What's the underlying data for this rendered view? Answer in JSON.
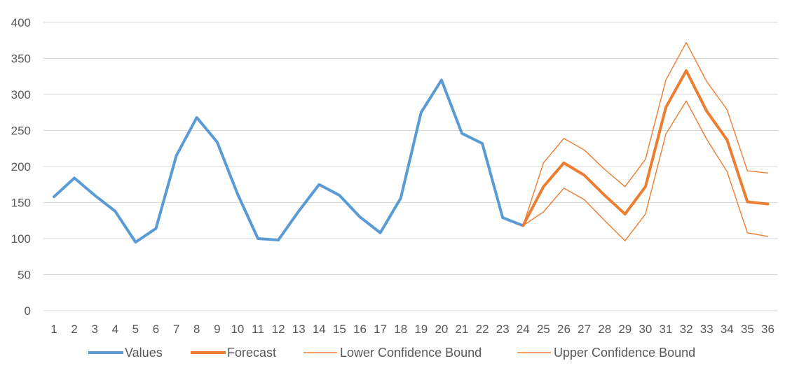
{
  "chart_data": {
    "type": "line",
    "title": "",
    "xlabel": "",
    "ylabel": "",
    "ylim": [
      0,
      400
    ],
    "y_ticks": [
      "0",
      "50",
      "100",
      "150",
      "200",
      "250",
      "300",
      "350",
      "400"
    ],
    "grid": true,
    "legend_position": "bottom",
    "categories": [
      "1",
      "2",
      "3",
      "4",
      "5",
      "6",
      "7",
      "8",
      "9",
      "10",
      "11",
      "12",
      "13",
      "14",
      "15",
      "16",
      "17",
      "18",
      "19",
      "20",
      "21",
      "22",
      "23",
      "24",
      "25",
      "26",
      "27",
      "28",
      "29",
      "30",
      "31",
      "32",
      "33",
      "34",
      "35",
      "36"
    ],
    "series": [
      {
        "name": "Values",
        "color": "#5b9bd5",
        "style": "thick",
        "values": [
          158,
          184,
          160,
          138,
          95,
          114,
          215,
          268,
          234,
          162,
          100,
          98,
          138,
          175,
          160,
          130,
          108,
          156,
          275,
          320,
          246,
          232,
          129,
          118,
          null,
          null,
          null,
          null,
          null,
          null,
          null,
          null,
          null,
          null,
          null,
          null
        ]
      },
      {
        "name": "Forecast",
        "color": "#ed7d31",
        "style": "thick",
        "values": [
          null,
          null,
          null,
          null,
          null,
          null,
          null,
          null,
          null,
          null,
          null,
          null,
          null,
          null,
          null,
          null,
          null,
          null,
          null,
          null,
          null,
          null,
          null,
          118,
          172,
          205,
          188,
          160,
          134,
          172,
          282,
          333,
          277,
          237,
          151,
          148
        ]
      },
      {
        "name": "Lower Confidence Bound",
        "color": "#ed7d31",
        "style": "thin",
        "values": [
          null,
          null,
          null,
          null,
          null,
          null,
          null,
          null,
          null,
          null,
          null,
          null,
          null,
          null,
          null,
          null,
          null,
          null,
          null,
          null,
          null,
          null,
          null,
          118,
          137,
          170,
          154,
          125,
          97,
          134,
          245,
          291,
          238,
          193,
          108,
          103
        ]
      },
      {
        "name": "Upper Confidence Bound",
        "color": "#ed7d31",
        "style": "thin",
        "values": [
          null,
          null,
          null,
          null,
          null,
          null,
          null,
          null,
          null,
          null,
          null,
          null,
          null,
          null,
          null,
          null,
          null,
          null,
          null,
          null,
          null,
          null,
          null,
          118,
          205,
          239,
          223,
          196,
          172,
          210,
          320,
          372,
          318,
          279,
          194,
          191
        ]
      }
    ]
  }
}
